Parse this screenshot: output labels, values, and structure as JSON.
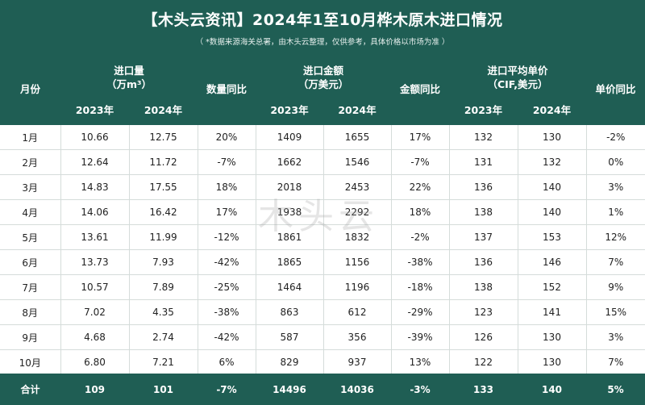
{
  "title": "【木头云资讯】2024年1至10月桦木原木进口情况",
  "subtitle": "（ *数据来源海关总署，由木头云整理，仅供参考，具体价格以市场为准 ）",
  "headers": {
    "month": "月份",
    "qty": "进口量",
    "qty_unit": "（万m³）",
    "qty_yoy": "数量同比",
    "amount": "进口金额",
    "amount_unit": "（万美元）",
    "amount_yoy": "金额同比",
    "price": "进口平均单价",
    "price_unit": "（CIF,美元）",
    "price_yoy": "单价同比",
    "y2023": "2023年",
    "y2024": "2024年"
  },
  "rows": [
    {
      "month": "1月",
      "q23": "10.66",
      "q24": "12.75",
      "qy": "20%",
      "a23": "1409",
      "a24": "1655",
      "ay": "17%",
      "p23": "132",
      "p24": "130",
      "py": "-2%"
    },
    {
      "month": "2月",
      "q23": "12.64",
      "q24": "11.72",
      "qy": "-7%",
      "a23": "1662",
      "a24": "1546",
      "ay": "-7%",
      "p23": "131",
      "p24": "132",
      "py": "0%"
    },
    {
      "month": "3月",
      "q23": "14.83",
      "q24": "17.55",
      "qy": "18%",
      "a23": "2018",
      "a24": "2453",
      "ay": "22%",
      "p23": "136",
      "p24": "140",
      "py": "3%"
    },
    {
      "month": "4月",
      "q23": "14.06",
      "q24": "16.42",
      "qy": "17%",
      "a23": "1938",
      "a24": "2292",
      "ay": "18%",
      "p23": "138",
      "p24": "140",
      "py": "1%"
    },
    {
      "month": "5月",
      "q23": "13.61",
      "q24": "11.99",
      "qy": "-12%",
      "a23": "1861",
      "a24": "1832",
      "ay": "-2%",
      "p23": "137",
      "p24": "153",
      "py": "12%"
    },
    {
      "month": "6月",
      "q23": "13.73",
      "q24": "7.93",
      "qy": "-42%",
      "a23": "1865",
      "a24": "1156",
      "ay": "-38%",
      "p23": "136",
      "p24": "146",
      "py": "7%"
    },
    {
      "month": "7月",
      "q23": "10.57",
      "q24": "7.89",
      "qy": "-25%",
      "a23": "1464",
      "a24": "1196",
      "ay": "-18%",
      "p23": "138",
      "p24": "152",
      "py": "9%"
    },
    {
      "month": "8月",
      "q23": "7.02",
      "q24": "4.35",
      "qy": "-38%",
      "a23": "863",
      "a24": "612",
      "ay": "-29%",
      "p23": "123",
      "p24": "141",
      "py": "15%"
    },
    {
      "month": "9月",
      "q23": "4.68",
      "q24": "2.74",
      "qy": "-42%",
      "a23": "587",
      "a24": "356",
      "ay": "-39%",
      "p23": "126",
      "p24": "130",
      "py": "3%"
    },
    {
      "month": "10月",
      "q23": "6.80",
      "q24": "7.21",
      "qy": "6%",
      "a23": "829",
      "a24": "937",
      "ay": "13%",
      "p23": "122",
      "p24": "130",
      "py": "7%"
    }
  ],
  "total": {
    "month": "合计",
    "q23": "109",
    "q24": "101",
    "qy": "-7%",
    "a23": "14496",
    "a24": "14036",
    "ay": "-3%",
    "p23": "133",
    "p24": "140",
    "py": "5%"
  },
  "watermark": "木头云",
  "colors": {
    "header_bg": "#1f5e54",
    "positive": "#d3221c",
    "negative": "#2f6f63"
  }
}
